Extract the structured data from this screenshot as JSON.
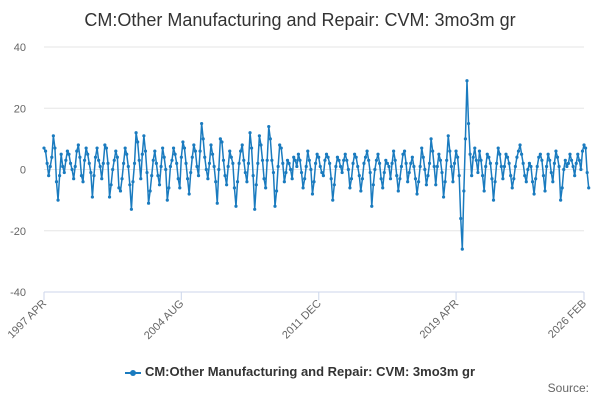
{
  "chart_data": {
    "type": "line",
    "title": "CM:Other Manufacturing and Repair: CVM: 3mo3m gr",
    "xlabel": "",
    "ylabel": "",
    "ylim": [
      -40,
      40
    ],
    "yticks": [
      "40",
      "20",
      "0",
      "-20",
      "-40"
    ],
    "xlim": [
      1997.25,
      2026.08
    ],
    "xticks": [
      {
        "label": "1997 APR",
        "t": 1997.25
      },
      {
        "label": "2004 AUG",
        "t": 2004.58
      },
      {
        "label": "2011 DEC",
        "t": 2011.92
      },
      {
        "label": "2019 APR",
        "t": 2019.25
      },
      {
        "label": "2026 FEB",
        "t": 2026.08
      }
    ],
    "series": [
      {
        "name": "CM:Other Manufacturing and Repair: CVM: 3mo3m gr",
        "color": "#1a7bbf",
        "x_start": 1997.25,
        "x_step": 0.08333,
        "values": [
          7,
          6,
          2,
          -2,
          1,
          4,
          11,
          7,
          -4,
          -10,
          -2,
          5,
          1,
          -1,
          3,
          6,
          5,
          2,
          0,
          -3,
          1,
          6,
          8,
          4,
          -2,
          -4,
          3,
          7,
          5,
          2,
          -1,
          -9,
          -2,
          4,
          7,
          3,
          1,
          -3,
          2,
          8,
          7,
          2,
          -9,
          -5,
          0,
          3,
          6,
          4,
          -6,
          -7,
          -3,
          2,
          7,
          5,
          1,
          -5,
          -13,
          -4,
          2,
          12,
          9,
          3,
          -3,
          5,
          11,
          6,
          -1,
          -11,
          -7,
          -2,
          3,
          6,
          2,
          -2,
          -5,
          1,
          7,
          4,
          0,
          -10,
          -6,
          1,
          3,
          7,
          5,
          2,
          -3,
          -6,
          4,
          9,
          7,
          2,
          -3,
          -8,
          -1,
          4,
          8,
          6,
          1,
          -2,
          6,
          15,
          10,
          4,
          0,
          -3,
          2,
          8,
          5,
          1,
          -4,
          -11,
          0,
          10,
          9,
          3,
          -2,
          -5,
          1,
          6,
          4,
          2,
          -6,
          -12,
          -4,
          2,
          6,
          8,
          3,
          -1,
          -4,
          2,
          12,
          7,
          -2,
          -13,
          -5,
          2,
          11,
          8,
          3,
          -3,
          -6,
          3,
          14,
          10,
          3,
          -1,
          -12,
          -7,
          1,
          8,
          7,
          2,
          -4,
          -1,
          3,
          2,
          0,
          -3,
          4,
          3,
          1,
          5,
          3,
          -1,
          -6,
          -3,
          1,
          6,
          3,
          0,
          -8,
          -4,
          2,
          5,
          4,
          1,
          -1,
          -2,
          3,
          5,
          4,
          2,
          -3,
          -10,
          -5,
          1,
          4,
          3,
          1,
          -1,
          3,
          5,
          3,
          0,
          -6,
          -3,
          2,
          5,
          4,
          1,
          -2,
          -7,
          -3,
          2,
          4,
          6,
          3,
          -1,
          -12,
          -5,
          0,
          3,
          5,
          2,
          -3,
          -6,
          -1,
          3,
          2,
          1,
          -3,
          2,
          6,
          3,
          -2,
          -7,
          -3,
          1,
          5,
          6,
          2,
          -4,
          -1,
          2,
          4,
          1,
          -3,
          -8,
          -4,
          1,
          7,
          4,
          0,
          -5,
          -2,
          2,
          10,
          6,
          1,
          -5,
          1,
          5,
          3,
          -1,
          -9,
          -4,
          3,
          11,
          6,
          1,
          -4,
          2,
          6,
          4,
          -2,
          -16,
          -26,
          -7,
          10,
          29,
          15,
          5,
          -2,
          4,
          7,
          3,
          -1,
          6,
          3,
          -2,
          -7,
          1,
          5,
          4,
          2,
          -3,
          -10,
          -4,
          2,
          7,
          5,
          1,
          -3,
          1,
          5,
          4,
          2,
          -2,
          -6,
          -3,
          1,
          4,
          6,
          8,
          5,
          2,
          -2,
          -4,
          0,
          2,
          1,
          -4,
          -8,
          -3,
          1,
          4,
          5,
          3,
          -2,
          -7,
          1,
          5,
          3,
          -1,
          -4,
          2,
          6,
          4,
          1,
          -10,
          -6,
          0,
          3,
          1,
          2,
          5,
          3,
          1,
          -2,
          2,
          5,
          3,
          0,
          6,
          8,
          7,
          -1,
          -6
        ]
      }
    ]
  },
  "legend": {
    "label": "CM:Other Manufacturing and Repair: CVM: 3mo3m gr"
  },
  "footer": {
    "source_label": "Source:"
  }
}
